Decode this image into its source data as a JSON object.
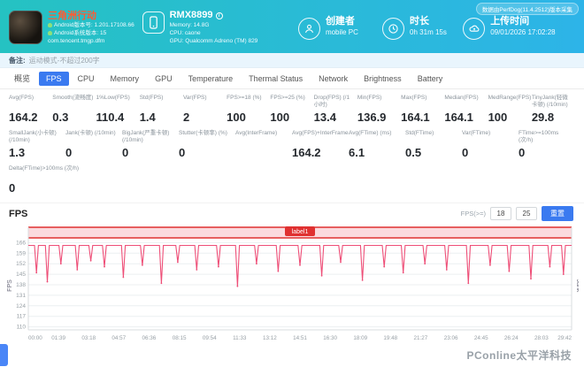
{
  "header": {
    "game": {
      "title": "三角洲行动",
      "app_version": "Android版本号: 1.201.17108.66",
      "os_version": "Android系统版本: 15",
      "package": "com.tencent.tmgp.dfm"
    },
    "device": {
      "name": "RMX8899",
      "memory": "Memory: 14.8G",
      "cpu": "CPU: caone",
      "gpu": "GPU: Qualcomm Adreno (TM) 829"
    },
    "creator": {
      "label": "创建者",
      "value": "mobile PC"
    },
    "duration": {
      "label": "时长",
      "value": "0h 31m 15s"
    },
    "upload": {
      "label": "上传时间",
      "value": "09/01/2026 17:02:28"
    },
    "version_badge": "数据由PerfDog(11.4.2512)版本采集"
  },
  "note": {
    "label": "备注:",
    "text": "运动模式-不超过200字"
  },
  "tabs": [
    "概览",
    "FPS",
    "CPU",
    "Memory",
    "GPU",
    "Temperature",
    "Thermal Status",
    "Network",
    "Brightness",
    "Battery"
  ],
  "active_tab": "FPS",
  "stats": {
    "row1": [
      {
        "label": "Avg(FPS)",
        "value": "164.2"
      },
      {
        "label": "Smooth(流畅度)",
        "value": "0.3"
      },
      {
        "label": "1%Low(FPS)",
        "value": "110.4"
      },
      {
        "label": "Std(FPS)",
        "value": "1.4"
      },
      {
        "label": "Var(FPS)",
        "value": "2"
      },
      {
        "label": "FPS>=18 (%)",
        "value": "100"
      },
      {
        "label": "FPS>=25 (%)",
        "value": "100"
      },
      {
        "label": "Drop(FPS) (/1小时)",
        "value": "13.4"
      },
      {
        "label": "Min(FPS)",
        "value": "136.9"
      },
      {
        "label": "Max(FPS)",
        "value": "164.1"
      },
      {
        "label": "Median(FPS)",
        "value": "164.1"
      },
      {
        "label": "MedRange(FPS)",
        "value": "100"
      },
      {
        "label": "TinyJank(轻微卡顿) (/10min)",
        "value": "29.8"
      }
    ],
    "row2": [
      {
        "label": "SmallJank(小卡顿) (/10min)",
        "value": "1.3"
      },
      {
        "label": "Jank(卡顿) (/10min)",
        "value": "0"
      },
      {
        "label": "BigJank(严重卡顿) (/10min)",
        "value": "0"
      },
      {
        "label": "Stutter(卡顿率) (%)",
        "value": "0"
      },
      {
        "label": "Avg(InterFrame)",
        "value": ""
      },
      {
        "label": "Avg(FPS)+InterFrame",
        "value": "164.2"
      },
      {
        "label": "Avg(FTime) (ms)",
        "value": "6.1"
      },
      {
        "label": "Std(FTime)",
        "value": "0.5"
      },
      {
        "label": "Var(FTime)",
        "value": "0"
      },
      {
        "label": "FTime>=100ms (次/h)",
        "value": "0"
      }
    ],
    "row3": [
      {
        "label": "Delta(FTime)>100ms (次/h)",
        "value": "0"
      }
    ]
  },
  "fps_section": {
    "title": "FPS",
    "threshold_label": "FPS(>=)",
    "threshold_1": "18",
    "threshold_2": "25",
    "reset_button": "重置"
  },
  "chart_data": {
    "type": "line",
    "title": "FPS",
    "ylabel_left": "FPS",
    "ylabel_right": "Jank",
    "ylim": [
      108,
      168
    ],
    "y_ticks": [
      166,
      159,
      152,
      145,
      138,
      131,
      124,
      117,
      110
    ],
    "x_ticks": [
      "00:00",
      "01:39",
      "03:18",
      "04:57",
      "06:36",
      "08:15",
      "09:54",
      "11:33",
      "13:12",
      "14:51",
      "16:30",
      "18:09",
      "19:48",
      "21:27",
      "23:06",
      "24:45",
      "26:24",
      "28:03",
      "29:42"
    ],
    "baseline_fps": 164.2,
    "annotation_band": {
      "label": "label1"
    },
    "line_color": "#ee4e77",
    "band_color": "#e03131",
    "grid": true,
    "legend": false,
    "spikes": [
      {
        "t": 0.015,
        "v": 146
      },
      {
        "t": 0.035,
        "v": 140
      },
      {
        "t": 0.06,
        "v": 152
      },
      {
        "t": 0.09,
        "v": 148
      },
      {
        "t": 0.115,
        "v": 154
      },
      {
        "t": 0.14,
        "v": 150
      },
      {
        "t": 0.175,
        "v": 143
      },
      {
        "t": 0.21,
        "v": 151
      },
      {
        "t": 0.245,
        "v": 139
      },
      {
        "t": 0.275,
        "v": 153
      },
      {
        "t": 0.31,
        "v": 148
      },
      {
        "t": 0.35,
        "v": 150
      },
      {
        "t": 0.385,
        "v": 137
      },
      {
        "t": 0.42,
        "v": 152
      },
      {
        "t": 0.46,
        "v": 147
      },
      {
        "t": 0.5,
        "v": 151
      },
      {
        "t": 0.54,
        "v": 144
      },
      {
        "t": 0.575,
        "v": 153
      },
      {
        "t": 0.615,
        "v": 141
      },
      {
        "t": 0.655,
        "v": 150
      },
      {
        "t": 0.69,
        "v": 146
      },
      {
        "t": 0.73,
        "v": 152
      },
      {
        "t": 0.77,
        "v": 148
      },
      {
        "t": 0.81,
        "v": 139
      },
      {
        "t": 0.85,
        "v": 151
      },
      {
        "t": 0.885,
        "v": 147
      },
      {
        "t": 0.925,
        "v": 142
      },
      {
        "t": 0.96,
        "v": 150
      },
      {
        "t": 0.985,
        "v": 145
      }
    ]
  },
  "watermark": "PConline太平洋科技"
}
